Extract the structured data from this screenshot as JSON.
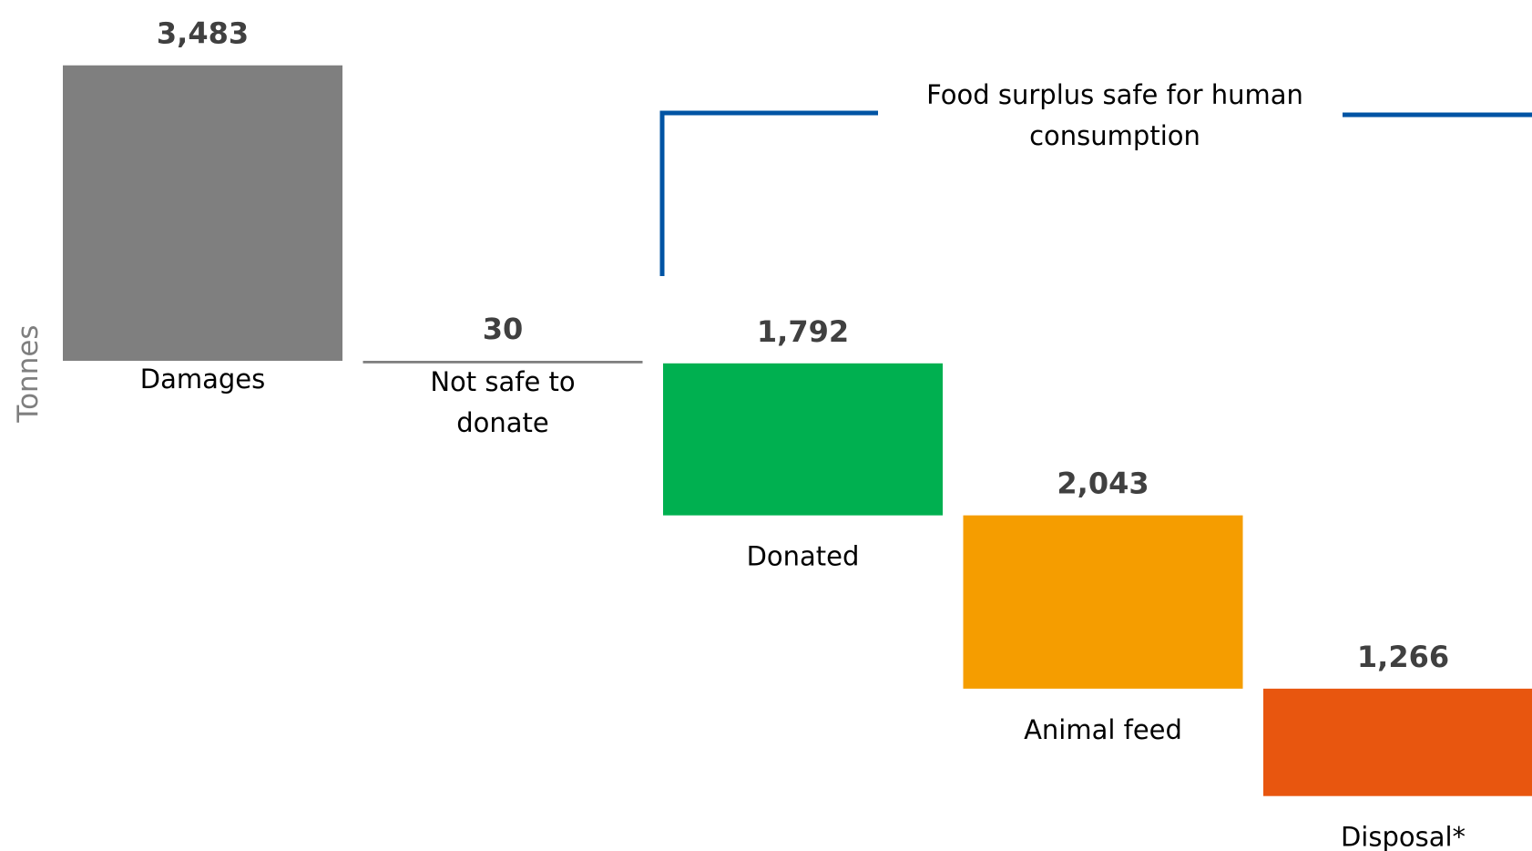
{
  "chart_data": {
    "type": "bar",
    "subtype": "waterfall",
    "title": "",
    "xlabel": "",
    "ylabel": "Tonnes",
    "categories": [
      "Damages",
      "Not safe to donate",
      "Donated",
      "Animal feed",
      "Disposal*"
    ],
    "category_lines": [
      [
        "Damages"
      ],
      [
        "Not safe to",
        "donate"
      ],
      [
        "Donated"
      ],
      [
        "Animal feed"
      ],
      [
        "Disposal*"
      ]
    ],
    "values": [
      3483,
      30,
      1792,
      2043,
      1266
    ],
    "value_labels": [
      "3,483",
      "30",
      "1,792",
      "2,043",
      "1,266"
    ],
    "colors": [
      "#7f7f7f",
      "#7f7f7f",
      "#00b050",
      "#f59d00",
      "#e8560f"
    ],
    "bracket_color": "#0054a4",
    "annotation": {
      "lines": [
        "Food surplus safe for human",
        "consumption"
      ],
      "spans": [
        "Donated",
        "Animal feed",
        "Disposal*"
      ]
    },
    "axis_label_color": "#7f7f7f",
    "grid": false,
    "legend": "none"
  }
}
